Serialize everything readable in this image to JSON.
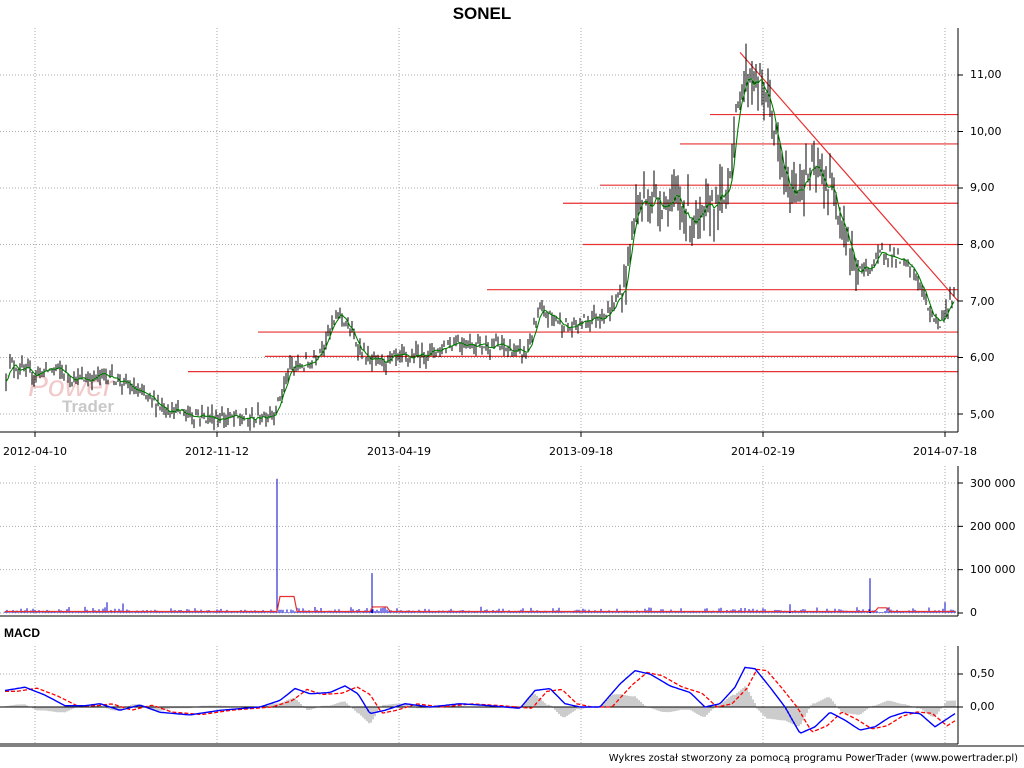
{
  "chart_data": [
    {
      "type": "line",
      "title": "SONEL",
      "x_tick_labels": [
        "2012-04-10",
        "2012-11-12",
        "2013-04-19",
        "2013-09-18",
        "2014-02-19",
        "2014-07-18"
      ],
      "y_ticks": [
        "5,00",
        "6,00",
        "7,00",
        "8,00",
        "9,00",
        "10,00",
        "11,00"
      ],
      "ylim": [
        4.8,
        11.6
      ],
      "grid": true,
      "price_anchors": [
        [
          0,
          5.3
        ],
        [
          10,
          5.9
        ],
        [
          30,
          5.7
        ],
        [
          55,
          5.8
        ],
        [
          80,
          5.6
        ],
        [
          110,
          5.7
        ],
        [
          145,
          5.3
        ],
        [
          175,
          5.05
        ],
        [
          210,
          4.95
        ],
        [
          250,
          4.9
        ],
        [
          275,
          5.05
        ],
        [
          290,
          5.8
        ],
        [
          310,
          5.9
        ],
        [
          325,
          6.3
        ],
        [
          340,
          6.8
        ],
        [
          355,
          6.3
        ],
        [
          370,
          5.9
        ],
        [
          390,
          5.95
        ],
        [
          410,
          6.0
        ],
        [
          440,
          6.15
        ],
        [
          455,
          6.3
        ],
        [
          470,
          6.25
        ],
        [
          500,
          6.2
        ],
        [
          525,
          6.05
        ],
        [
          540,
          6.8
        ],
        [
          555,
          6.7
        ],
        [
          570,
          6.5
        ],
        [
          590,
          6.7
        ],
        [
          610,
          6.8
        ],
        [
          625,
          7.3
        ],
        [
          635,
          8.6
        ],
        [
          645,
          8.8
        ],
        [
          660,
          8.8
        ],
        [
          680,
          8.7
        ],
        [
          700,
          8.3
        ],
        [
          710,
          8.7
        ],
        [
          725,
          8.8
        ],
        [
          735,
          10.0
        ],
        [
          742,
          10.9
        ],
        [
          750,
          11.0
        ],
        [
          760,
          10.8
        ],
        [
          770,
          10.5
        ],
        [
          780,
          9.4
        ],
        [
          790,
          8.9
        ],
        [
          800,
          9.1
        ],
        [
          815,
          9.3
        ],
        [
          825,
          9.1
        ],
        [
          835,
          8.9
        ],
        [
          845,
          8.3
        ],
        [
          855,
          7.5
        ],
        [
          870,
          7.6
        ],
        [
          885,
          7.9
        ],
        [
          900,
          7.7
        ],
        [
          915,
          7.5
        ],
        [
          930,
          6.8
        ],
        [
          940,
          6.6
        ],
        [
          950,
          7.0
        ]
      ],
      "resistance_levels": [
        {
          "x_start": 710,
          "value": 10.3
        },
        {
          "x_start": 680,
          "value": 9.78
        },
        {
          "x_start": 600,
          "value": 9.05
        },
        {
          "x_start": 563,
          "value": 8.73
        },
        {
          "x_start": 583,
          "value": 8.0
        }
      ],
      "support_levels": [
        {
          "x_start": 487,
          "value": 7.2
        },
        {
          "x_start": 258,
          "value": 6.45
        },
        {
          "x_start": 265,
          "value": 6.02
        },
        {
          "x_start": 188,
          "value": 5.75
        }
      ],
      "trend_line": {
        "x1": 740,
        "y1": 11.4,
        "x2": 958,
        "y2": 7.0
      },
      "colors": {
        "price": "#000000",
        "moving_average": "#008000",
        "levels": "#e83030",
        "grid": "#aaaaaa"
      }
    },
    {
      "type": "bar",
      "y_ticks": [
        "0",
        "100 000",
        "200 000",
        "300 000"
      ],
      "ylim": [
        0,
        320000
      ],
      "spikes": [
        {
          "x": 277,
          "value": 310000
        },
        {
          "x": 372,
          "value": 92000
        },
        {
          "x": 870,
          "value": 80000
        },
        {
          "x": 107,
          "value": 25000
        },
        {
          "x": 123,
          "value": 22000
        },
        {
          "x": 790,
          "value": 20000
        },
        {
          "x": 945,
          "value": 25000
        }
      ],
      "avg_bumps": [
        {
          "x1": 277,
          "x2": 297,
          "value": 38000
        },
        {
          "x1": 370,
          "x2": 390,
          "value": 14000
        },
        {
          "x1": 875,
          "x2": 890,
          "value": 12000
        }
      ],
      "colors": {
        "bars": "#0000cc",
        "average": "#e83030"
      }
    },
    {
      "type": "line",
      "title": "MACD",
      "y_ticks": [
        "0,50",
        "0,00"
      ],
      "ylim": [
        -0.65,
        0.65
      ],
      "macd_anchors": [
        [
          5,
          0.25
        ],
        [
          25,
          0.3
        ],
        [
          45,
          0.18
        ],
        [
          65,
          0.02
        ],
        [
          85,
          0.02
        ],
        [
          100,
          0.05
        ],
        [
          120,
          -0.05
        ],
        [
          140,
          0.03
        ],
        [
          160,
          -0.08
        ],
        [
          190,
          -0.12
        ],
        [
          220,
          -0.05
        ],
        [
          260,
          0.0
        ],
        [
          280,
          0.1
        ],
        [
          295,
          0.28
        ],
        [
          310,
          0.2
        ],
        [
          330,
          0.22
        ],
        [
          345,
          0.32
        ],
        [
          358,
          0.2
        ],
        [
          370,
          -0.1
        ],
        [
          385,
          -0.05
        ],
        [
          405,
          0.05
        ],
        [
          430,
          0.0
        ],
        [
          460,
          0.05
        ],
        [
          490,
          0.02
        ],
        [
          520,
          -0.02
        ],
        [
          535,
          0.25
        ],
        [
          550,
          0.28
        ],
        [
          565,
          0.05
        ],
        [
          580,
          0.0
        ],
        [
          600,
          0.0
        ],
        [
          620,
          0.35
        ],
        [
          635,
          0.55
        ],
        [
          650,
          0.5
        ],
        [
          670,
          0.32
        ],
        [
          690,
          0.22
        ],
        [
          705,
          0.0
        ],
        [
          720,
          0.05
        ],
        [
          735,
          0.3
        ],
        [
          745,
          0.6
        ],
        [
          755,
          0.58
        ],
        [
          770,
          0.3
        ],
        [
          785,
          0.0
        ],
        [
          800,
          -0.4
        ],
        [
          815,
          -0.3
        ],
        [
          830,
          -0.08
        ],
        [
          845,
          -0.2
        ],
        [
          860,
          -0.35
        ],
        [
          875,
          -0.3
        ],
        [
          890,
          -0.15
        ],
        [
          905,
          -0.08
        ],
        [
          920,
          -0.1
        ],
        [
          935,
          -0.3
        ],
        [
          955,
          -0.1
        ]
      ],
      "signal_lag": 12,
      "colors": {
        "macd": "#0000ff",
        "signal": "#ff0000",
        "histogram": "#999999",
        "zero": "#000000"
      }
    }
  ],
  "watermark": {
    "line1": "Power",
    "line2": "Trader"
  },
  "footer": "Wykres został stworzony za pomocą programu PowerTrader (www.powertrader.pl)"
}
